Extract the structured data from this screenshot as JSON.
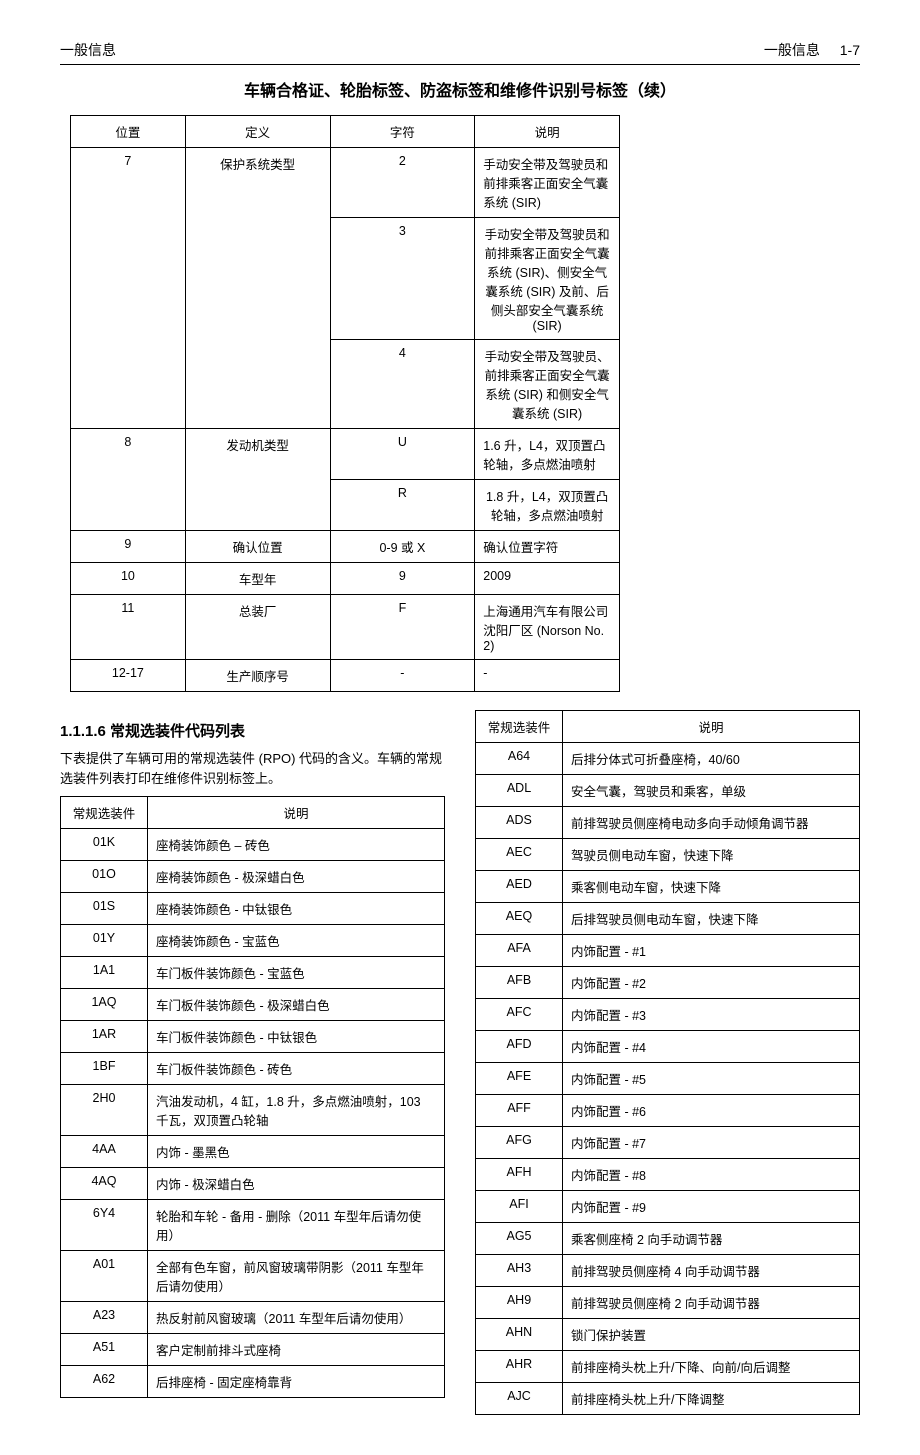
{
  "header": {
    "left": "一般信息",
    "rightSection": "一般信息",
    "rightPage": "1-7"
  },
  "title": "车辆合格证、轮胎标签、防盗标签和维修件识别号标签（续）",
  "vinTable": {
    "headers": [
      "位置",
      "定义",
      "字符",
      "说明"
    ],
    "rows": [
      {
        "pos": "7",
        "def": "保护系统类型",
        "char": "2",
        "desc": "手动安全带及驾驶员和前排乘客正面安全气囊系统 (SIR)",
        "rowspanPos": 3,
        "rowspanDef": 3
      },
      {
        "char": "3",
        "desc": "手动安全带及驾驶员和前排乘客正面安全气囊系统 (SIR)、侧安全气囊系统 (SIR) 及前、后侧头部安全气囊系统 (SIR)"
      },
      {
        "char": "4",
        "desc": "手动安全带及驾驶员、前排乘客正面安全气囊系统 (SIR) 和侧安全气囊系统 (SIR)"
      },
      {
        "pos": "8",
        "def": "发动机类型",
        "char": "U",
        "desc": "1.6 升，L4，双顶置凸轮轴，多点燃油喷射",
        "rowspanPos": 2,
        "rowspanDef": 2
      },
      {
        "char": "R",
        "desc": "1.8 升，L4，双顶置凸轮轴，多点燃油喷射"
      },
      {
        "pos": "9",
        "def": "确认位置",
        "char": "0-9 或 X",
        "desc": "确认位置字符"
      },
      {
        "pos": "10",
        "def": "车型年",
        "char": "9",
        "desc": "2009"
      },
      {
        "pos": "11",
        "def": "总装厂",
        "char": "F",
        "desc": "上海通用汽车有限公司沈阳厂区 (Norson No. 2)"
      },
      {
        "pos": "12-17",
        "def": "生产顺序号",
        "char": "-",
        "desc": "-"
      }
    ]
  },
  "section": {
    "heading": "1.1.1.6 常规选装件代码列表",
    "desc": "下表提供了车辆可用的常规选装件 (RPO) 代码的含义。车辆的常规选装件列表打印在维修件识别标签上。"
  },
  "rpoHeaders": [
    "常规选装件",
    "说明"
  ],
  "rpoLeft": [
    {
      "code": "01K",
      "desc": "座椅装饰颜色 – 砖色"
    },
    {
      "code": "01O",
      "desc": "座椅装饰颜色 - 极深蜡白色"
    },
    {
      "code": "01S",
      "desc": "座椅装饰颜色 - 中钛银色"
    },
    {
      "code": "01Y",
      "desc": "座椅装饰颜色 - 宝蓝色"
    },
    {
      "code": "1A1",
      "desc": "车门板件装饰颜色 - 宝蓝色"
    },
    {
      "code": "1AQ",
      "desc": "车门板件装饰颜色 - 极深蜡白色"
    },
    {
      "code": "1AR",
      "desc": "车门板件装饰颜色 - 中钛银色"
    },
    {
      "code": "1BF",
      "desc": "车门板件装饰颜色 - 砖色"
    },
    {
      "code": "2H0",
      "desc": "汽油发动机，4 缸，1.8 升，多点燃油喷射，103 千瓦，双顶置凸轮轴"
    },
    {
      "code": "4AA",
      "desc": "内饰 - 墨黑色"
    },
    {
      "code": "4AQ",
      "desc": "内饰 - 极深蜡白色"
    },
    {
      "code": "6Y4",
      "desc": "轮胎和车轮 - 备用 - 删除（2011 车型年后请勿使用）"
    },
    {
      "code": "A01",
      "desc": "全部有色车窗，前风窗玻璃带阴影（2011 车型年后请勿使用）"
    },
    {
      "code": "A23",
      "desc": "热反射前风窗玻璃（2011 车型年后请勿使用）"
    },
    {
      "code": "A51",
      "desc": "客户定制前排斗式座椅"
    },
    {
      "code": "A62",
      "desc": "后排座椅 - 固定座椅靠背"
    }
  ],
  "rpoRight": [
    {
      "code": "A64",
      "desc": "后排分体式可折叠座椅，40/60"
    },
    {
      "code": "ADL",
      "desc": "安全气囊，驾驶员和乘客，单级"
    },
    {
      "code": "ADS",
      "desc": "前排驾驶员侧座椅电动多向手动倾角调节器"
    },
    {
      "code": "AEC",
      "desc": "驾驶员侧电动车窗，快速下降"
    },
    {
      "code": "AED",
      "desc": "乘客侧电动车窗，快速下降"
    },
    {
      "code": "AEQ",
      "desc": "后排驾驶员侧电动车窗，快速下降"
    },
    {
      "code": "AFA",
      "desc": "内饰配置 - #1"
    },
    {
      "code": "AFB",
      "desc": "内饰配置 - #2"
    },
    {
      "code": "AFC",
      "desc": "内饰配置 - #3"
    },
    {
      "code": "AFD",
      "desc": "内饰配置 - #4"
    },
    {
      "code": "AFE",
      "desc": "内饰配置 - #5"
    },
    {
      "code": "AFF",
      "desc": "内饰配置 - #6"
    },
    {
      "code": "AFG",
      "desc": "内饰配置 - #7"
    },
    {
      "code": "AFH",
      "desc": "内饰配置 - #8"
    },
    {
      "code": "AFI",
      "desc": "内饰配置 - #9"
    },
    {
      "code": "AG5",
      "desc": "乘客侧座椅 2 向手动调节器"
    },
    {
      "code": "AH3",
      "desc": "前排驾驶员侧座椅 4 向手动调节器"
    },
    {
      "code": "AH9",
      "desc": "前排驾驶员侧座椅 2 向手动调节器"
    },
    {
      "code": "AHN",
      "desc": "锁门保护装置"
    },
    {
      "code": "AHR",
      "desc": "前排座椅头枕上升/下降、向前/向后调整"
    },
    {
      "code": "AJC",
      "desc": "前排座椅头枕上升/下降调整"
    }
  ]
}
